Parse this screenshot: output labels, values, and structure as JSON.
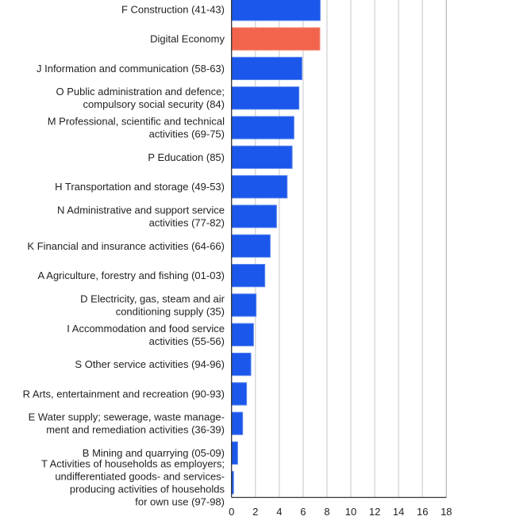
{
  "chart_data": {
    "type": "bar",
    "orientation": "horizontal",
    "title": "",
    "xlabel": "",
    "ylabel": "",
    "xlim": [
      0,
      18
    ],
    "xticks": [
      "0",
      "2",
      "4",
      "6",
      "8",
      "10",
      "12",
      "14",
      "16",
      "18"
    ],
    "grid": true,
    "legend": "none",
    "colors": {
      "default": "#1a57ea",
      "highlight": "#f2644c"
    },
    "categories": [
      [
        "F Construction (41-43)"
      ],
      [
        "Digital Economy"
      ],
      [
        "J Information and communication (58-63)"
      ],
      [
        "O Public administration and defence;",
        "compulsory social security (84)"
      ],
      [
        "M Professional, scientific and technical",
        "activities (69-75)"
      ],
      [
        "P Education (85)"
      ],
      [
        "H Transportation and storage (49-53)"
      ],
      [
        "N Administrative and support service",
        "activities (77-82)"
      ],
      [
        "K Financial and insurance activities (64-66)"
      ],
      [
        "A Agriculture, forestry and fishing (01-03)"
      ],
      [
        "D Electricity,  gas, steam and air",
        "conditioning supply (35)"
      ],
      [
        "I Accommodation and food service",
        "activities (55-56)"
      ],
      [
        "S Other service activities (94-96)"
      ],
      [
        "R Arts, entertainment and recreation (90-93)"
      ],
      [
        "E Water supply; sewerage, waste manage-",
        "ment and remediation activities (36-39)"
      ],
      [
        "B Mining and quarrying (05-09)"
      ],
      [
        "T Activities of households as employers;",
        "undifferentiated goods- and services-",
        "producing activities of households",
        "for own use (97-98)"
      ]
    ],
    "values": [
      7.43,
      7.4,
      5.9,
      5.65,
      5.23,
      5.08,
      4.66,
      3.77,
      3.24,
      2.79,
      2.06,
      1.84,
      1.62,
      1.26,
      0.93,
      0.51,
      0.17
    ],
    "highlight_index": 1
  }
}
